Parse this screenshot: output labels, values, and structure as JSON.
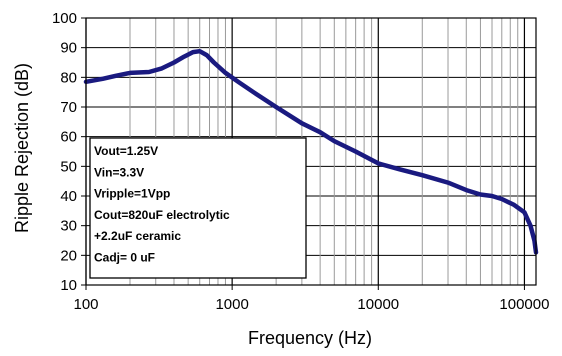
{
  "chart_data": {
    "type": "line",
    "xlabel": "Frequency (Hz)",
    "ylabel": "Ripple Rejection (dB)",
    "xscale": "log",
    "xlim": [
      100,
      120000
    ],
    "ylim": [
      10,
      100
    ],
    "x_ticks": [
      "100",
      "1000",
      "10000",
      "100000"
    ],
    "y_ticks": [
      "10",
      "20",
      "30",
      "40",
      "50",
      "60",
      "70",
      "80",
      "90",
      "100"
    ],
    "grid": true,
    "series": [
      {
        "color": "#1a1a80",
        "points": [
          [
            100,
            78.5
          ],
          [
            130,
            79.5
          ],
          [
            160,
            80.5
          ],
          [
            200,
            81.5
          ],
          [
            270,
            81.8
          ],
          [
            330,
            83.0
          ],
          [
            400,
            85.0
          ],
          [
            470,
            87.0
          ],
          [
            540,
            88.5
          ],
          [
            600,
            88.8
          ],
          [
            670,
            87.5
          ],
          [
            750,
            85.0
          ],
          [
            900,
            81.5
          ],
          [
            1100,
            78.5
          ],
          [
            1400,
            75.0
          ],
          [
            2000,
            70.0
          ],
          [
            3000,
            64.5
          ],
          [
            4000,
            61.5
          ],
          [
            5000,
            58.5
          ],
          [
            7000,
            55.0
          ],
          [
            10000,
            51.0
          ],
          [
            14000,
            49.0
          ],
          [
            20000,
            47.0
          ],
          [
            30000,
            44.5
          ],
          [
            40000,
            42.0
          ],
          [
            50000,
            40.5
          ],
          [
            60000,
            40.0
          ],
          [
            70000,
            39.0
          ],
          [
            85000,
            37.0
          ],
          [
            100000,
            34.5
          ],
          [
            110000,
            30.0
          ],
          [
            117000,
            25.0
          ],
          [
            120000,
            21.0
          ]
        ]
      }
    ],
    "annotation": {
      "lines": [
        "Vout=1.25V",
        "Vin=3.3V",
        "Vripple=1Vpp",
        "Cout=820uF electrolytic",
        "+2.2uF ceramic",
        "Cadj= 0 uF"
      ]
    }
  }
}
